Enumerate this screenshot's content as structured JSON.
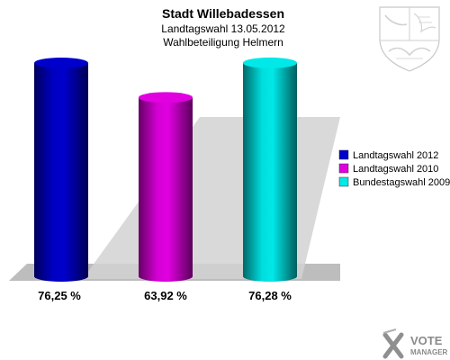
{
  "chart_data": {
    "type": "bar",
    "title": "Stadt Willebadessen",
    "subtitle": "Landtagswahl 13.05.2012",
    "subtitle2": "Wahlbeteiligung Helmern",
    "ylim": [
      0,
      100
    ],
    "series": [
      {
        "name": "Landtagswahl 2012",
        "value": 76.25,
        "label": "76,25 %",
        "color": "#0000cc"
      },
      {
        "name": "Landtagswahl 2010",
        "value": 63.92,
        "label": "63,92 %",
        "color": "#e000e0"
      },
      {
        "name": "Bundestagswahl 2009",
        "value": 76.28,
        "label": "76,28 %",
        "color": "#00e8e8"
      }
    ]
  },
  "logo": {
    "line1": "VOTE",
    "line2": "MANAGER",
    "icon": "vote-manager-x-logo"
  },
  "crest": {
    "icon": "nrw-coat-of-arms-icon"
  }
}
